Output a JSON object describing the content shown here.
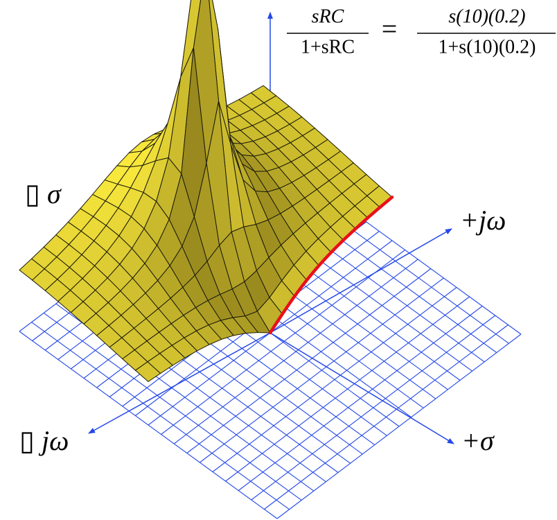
{
  "equation": {
    "lhs_numerator": "sRC",
    "lhs_denominator": "1+sRC",
    "equals": "=",
    "rhs_numerator": "s(10)(0.2)",
    "rhs_denominator": "1+s(10)(0.2)"
  },
  "axis_labels": {
    "neg_sigma": "▯ σ",
    "pos_jomega": "+jω",
    "neg_jomega": "▯ jω",
    "pos_sigma": "+σ"
  }
}
